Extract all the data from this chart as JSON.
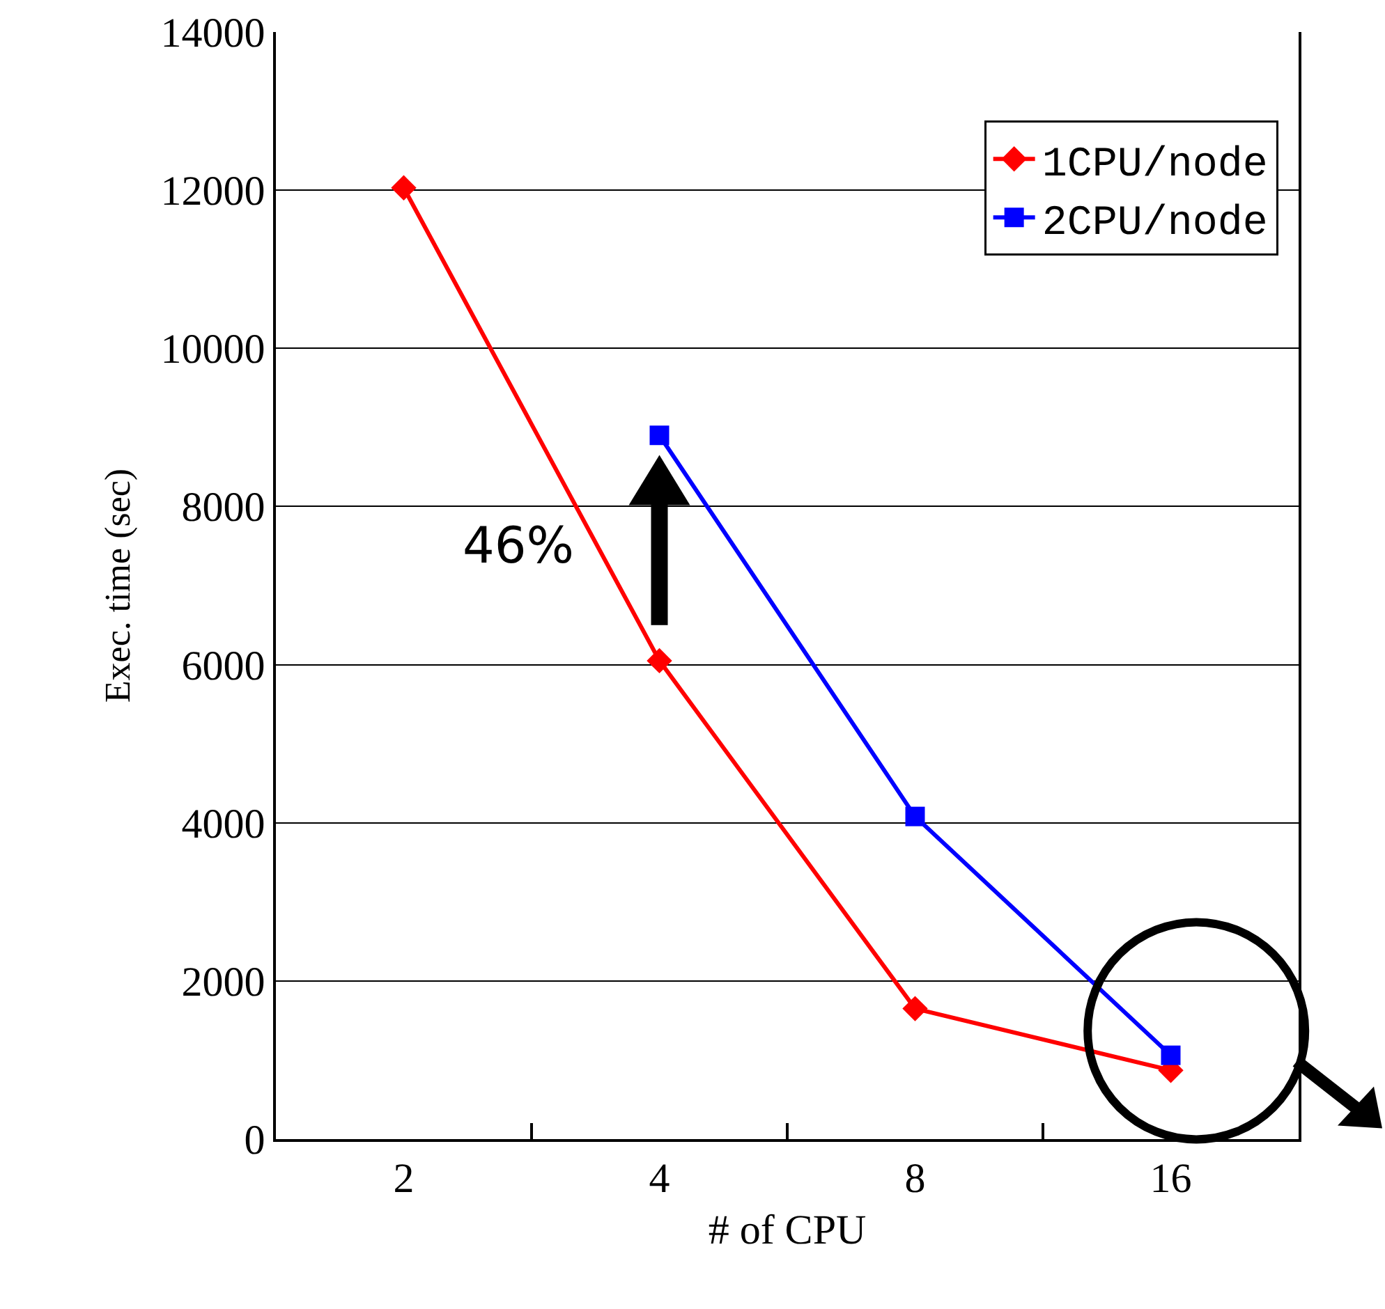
{
  "chart_data": {
    "type": "line",
    "xlabel": "# of CPU",
    "ylabel": "Exec. time (sec)",
    "categories": [
      "2",
      "4",
      "8",
      "16"
    ],
    "series": [
      {
        "name": "1CPU/node",
        "color": "#ff0000",
        "marker": "diamond",
        "values": [
          12030,
          6050,
          1650,
          870
        ]
      },
      {
        "name": "2CPU/node",
        "color": "#0000ff",
        "marker": "square",
        "values": [
          null,
          8900,
          4080,
          1060
        ]
      }
    ],
    "ylim": [
      0,
      14000
    ],
    "yticks": [
      0,
      2000,
      4000,
      6000,
      8000,
      10000,
      12000,
      14000
    ],
    "grid": "y",
    "legend": "top right",
    "line_style": "solid",
    "annotations": [
      "46%"
    ]
  }
}
